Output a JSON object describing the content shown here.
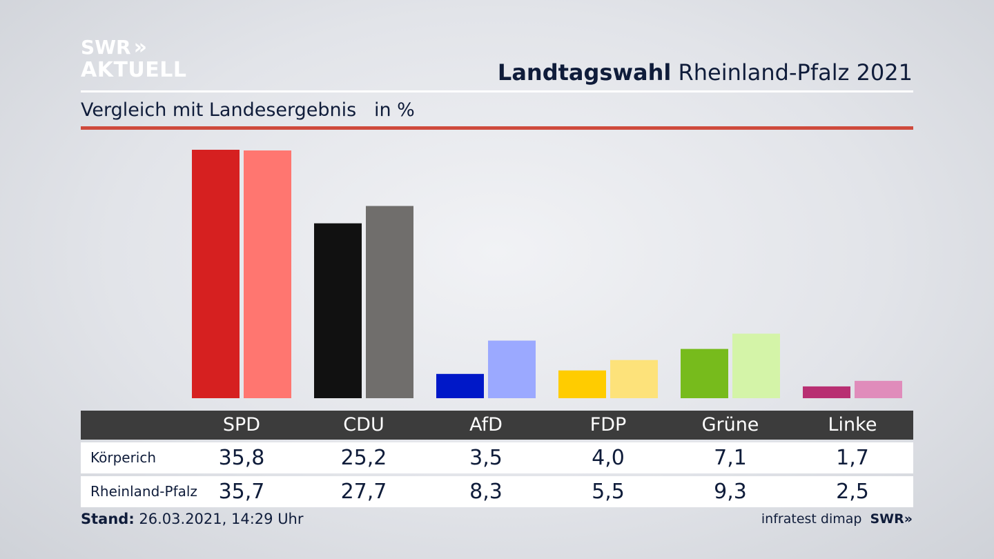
{
  "logo": {
    "line1": "SWR",
    "arrows": "»",
    "line2": "AKTUELL"
  },
  "header": {
    "title_bold": "Landtagswahl",
    "title_rest": "Rheinland-Pfalz 2021"
  },
  "subtitle": {
    "text": "Vergleich mit Landesergebnis",
    "unit": "in %"
  },
  "colors": {
    "accent_rule": "#cf4a3c",
    "series_primary": [
      "#d62020",
      "#111111",
      "#0018c8",
      "#ffcc00",
      "#77bb1c",
      "#b82f72"
    ],
    "series_secondary": [
      "#ff7670",
      "#706e6c",
      "#9ba9ff",
      "#fde27a",
      "#d4f4a8",
      "#e08cbb"
    ]
  },
  "chart_data": {
    "type": "bar",
    "categories": [
      "SPD",
      "CDU",
      "AfD",
      "FDP",
      "Grüne",
      "Linke"
    ],
    "series": [
      {
        "name": "Körperich",
        "values": [
          35.8,
          25.2,
          3.5,
          4.0,
          7.1,
          1.7
        ]
      },
      {
        "name": "Rheinland-Pfalz",
        "values": [
          35.7,
          27.7,
          8.3,
          5.5,
          9.3,
          2.5
        ]
      }
    ],
    "ylim": [
      0,
      36
    ],
    "grid": false,
    "legend": "table-below"
  },
  "table": {
    "headers": [
      "SPD",
      "CDU",
      "AfD",
      "FDP",
      "Grüne",
      "Linke"
    ],
    "rows": [
      {
        "label": "Körperich",
        "values": [
          "35,8",
          "25,2",
          "3,5",
          "4,0",
          "7,1",
          "1,7"
        ]
      },
      {
        "label": "Rheinland-Pfalz",
        "values": [
          "35,7",
          "27,7",
          "8,3",
          "5,5",
          "9,3",
          "2,5"
        ]
      }
    ]
  },
  "footer": {
    "stand_label": "Stand:",
    "stand_value": "26.03.2021, 14:29 Uhr",
    "source": "infratest dimap",
    "brand": "SWR»"
  }
}
